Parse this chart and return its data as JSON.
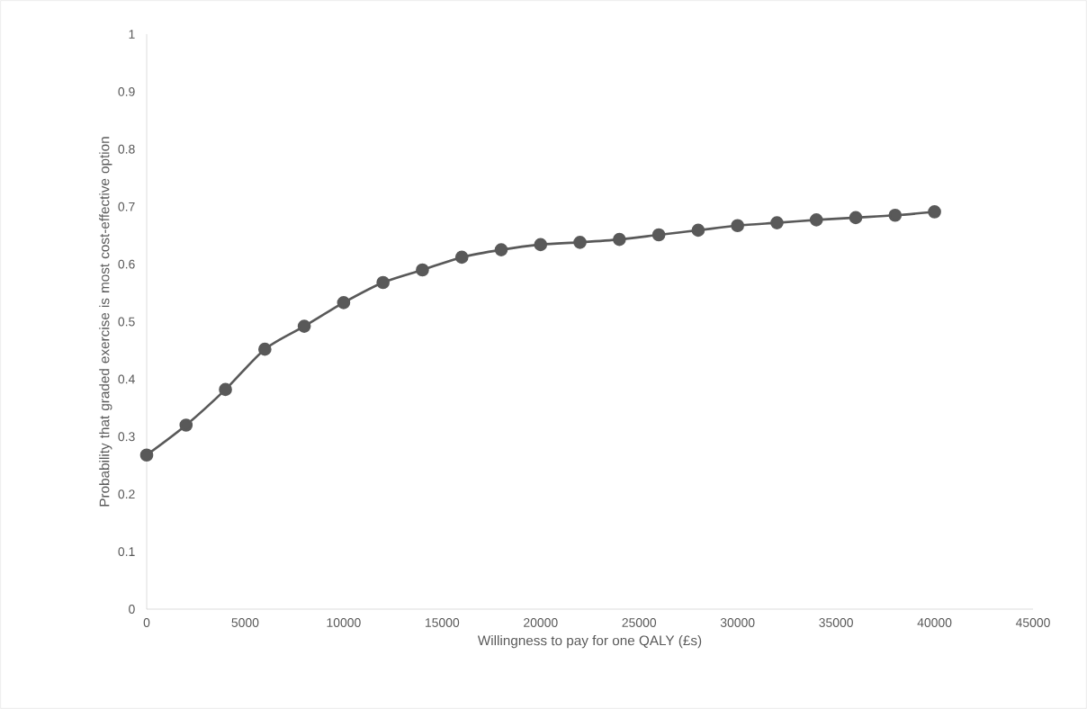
{
  "chart_data": {
    "type": "line",
    "xlabel": "Willingness to pay for one QALY (£s)",
    "ylabel": "Probability that graded exercise is most cost-effective option",
    "x": [
      0,
      2000,
      4000,
      6000,
      8000,
      10000,
      12000,
      14000,
      16000,
      18000,
      20000,
      22000,
      24000,
      26000,
      28000,
      30000,
      32000,
      34000,
      36000,
      38000,
      40000
    ],
    "series": [
      {
        "color": "#595959",
        "values": [
          0.268,
          0.32,
          0.382,
          0.452,
          0.492,
          0.533,
          0.568,
          0.59,
          0.612,
          0.625,
          0.634,
          0.638,
          0.643,
          0.651,
          0.659,
          0.667,
          0.672,
          0.677,
          0.681,
          0.685,
          0.691
        ]
      }
    ],
    "xlim": [
      0,
      45000
    ],
    "ylim": [
      0,
      1
    ],
    "xticks": [
      0,
      5000,
      10000,
      15000,
      20000,
      25000,
      30000,
      35000,
      40000,
      45000
    ],
    "yticks": [
      0,
      0.1,
      0.2,
      0.3,
      0.4,
      0.5,
      0.6,
      0.7,
      0.8,
      0.9,
      1
    ],
    "grid": false,
    "marker": "circle",
    "line_style": "solid"
  }
}
